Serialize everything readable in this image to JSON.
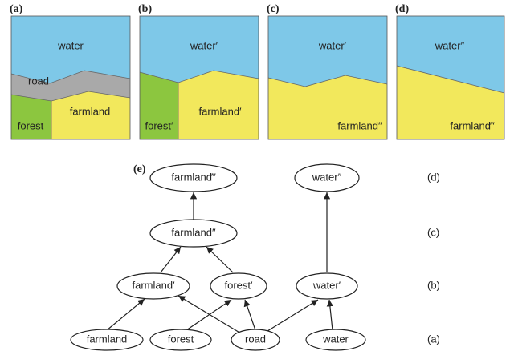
{
  "panels": [
    {
      "label": "(a)",
      "regions": [
        "water",
        "road",
        "forest",
        "farmland"
      ]
    },
    {
      "label": "(b)",
      "regions": [
        "water′",
        "forest′",
        "farmland′"
      ]
    },
    {
      "label": "(c)",
      "regions": [
        "water′",
        "farmland″"
      ]
    },
    {
      "label": "(d)",
      "regions": [
        "water″",
        "farmland‴"
      ]
    }
  ],
  "tree": {
    "label": "(e)",
    "levels": [
      "(d)",
      "(c)",
      "(b)",
      "(a)"
    ],
    "nodes": [
      "farmland‴",
      "water″",
      "farmland″",
      "farmland′",
      "forest′",
      "water′",
      "farmland",
      "forest",
      "road",
      "water"
    ]
  }
}
